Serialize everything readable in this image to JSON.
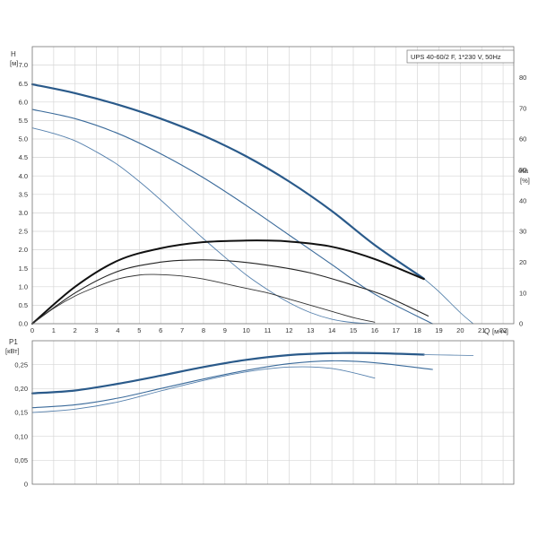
{
  "chart_data": [
    {
      "type": "line",
      "title": "UPS 40-60/2 F, 1*230 V, 50Hz",
      "ylabel": "H",
      "yunit": "[м]",
      "xlabel": "Q",
      "xunit": "[м³/ч]",
      "y2label": "eta",
      "y2unit": "[%]",
      "xlim": [
        0,
        22.5
      ],
      "ylim": [
        0,
        7.5
      ],
      "y2lim": [
        0,
        90
      ],
      "xticks": [
        "0",
        "1",
        "2",
        "3",
        "4",
        "5",
        "6",
        "7",
        "8",
        "9",
        "10",
        "11",
        "12",
        "13",
        "14",
        "15",
        "16",
        "17",
        "18",
        "19",
        "20",
        "21",
        "22"
      ],
      "yticks": [
        "0.0",
        "0.5",
        "1.0",
        "1.5",
        "2.0",
        "2.5",
        "3.0",
        "3.5",
        "4.0",
        "4.5",
        "5.0",
        "5.5",
        "6.0",
        "6.5",
        "7.0"
      ],
      "y2ticks": [
        "0",
        "10",
        "20",
        "30",
        "40",
        "50",
        "60",
        "70",
        "80"
      ],
      "grid": true,
      "series": [
        {
          "axis": "left",
          "color": "#2a5a8a",
          "width": 2.2,
          "x": [
            0,
            2,
            4,
            6,
            8,
            10,
            12,
            14,
            16,
            18.3
          ],
          "y": [
            6.48,
            6.24,
            5.93,
            5.55,
            5.09,
            4.53,
            3.85,
            3.05,
            2.13,
            1.22
          ]
        },
        {
          "axis": "left",
          "color": "#4a7aa6",
          "width": 0.8,
          "x": [
            18.3,
            19,
            20,
            20.6
          ],
          "y": [
            1.22,
            0.87,
            0.3,
            0
          ]
        },
        {
          "axis": "left",
          "color": "#3a6a9a",
          "width": 1.1,
          "x": [
            0,
            2,
            4,
            6,
            8,
            10,
            12,
            14,
            16,
            18.7
          ],
          "y": [
            5.8,
            5.55,
            5.15,
            4.6,
            3.95,
            3.2,
            2.4,
            1.6,
            0.8,
            0
          ]
        },
        {
          "axis": "left",
          "color": "#5580ad",
          "width": 0.9,
          "x": [
            0,
            1,
            2,
            3,
            4,
            5,
            6,
            7,
            8,
            9,
            10,
            11,
            12,
            13,
            14,
            15,
            16
          ],
          "y": [
            5.3,
            5.15,
            4.95,
            4.65,
            4.3,
            3.85,
            3.35,
            2.82,
            2.3,
            1.8,
            1.32,
            0.92,
            0.57,
            0.3,
            0.12,
            0.03,
            0
          ]
        },
        {
          "axis": "right",
          "color": "#111111",
          "width": 2,
          "x": [
            0,
            2,
            4,
            6,
            8,
            10,
            11,
            12,
            14,
            16,
            18.3
          ],
          "y": [
            0,
            12,
            20.5,
            24.5,
            26.5,
            27,
            27,
            26.7,
            25,
            21,
            14.5
          ]
        },
        {
          "axis": "right",
          "color": "#222222",
          "width": 1.1,
          "x": [
            0,
            2,
            4,
            6,
            7.5,
            9,
            11,
            13,
            15,
            16.5,
            18.5
          ],
          "y": [
            0,
            10,
            17,
            20,
            20.7,
            20.5,
            19,
            16.5,
            12.5,
            9,
            2.5
          ]
        },
        {
          "axis": "right",
          "color": "#333333",
          "width": 0.9,
          "x": [
            0,
            1,
            2,
            3,
            4,
            5,
            5.7,
            7,
            8,
            9,
            10,
            11,
            12,
            13,
            14,
            15,
            16
          ],
          "y": [
            0,
            5,
            9,
            12,
            14.5,
            15.8,
            16,
            15.5,
            14.5,
            13,
            11.5,
            10,
            8,
            6,
            4,
            2,
            0.5
          ]
        }
      ]
    },
    {
      "type": "line",
      "ylabel": "P1",
      "yunit": "[кВт]",
      "xlim": [
        0,
        22.5
      ],
      "ylim": [
        0,
        0.3
      ],
      "yticks": [
        "0",
        "0,05",
        "0,10",
        "0,15",
        "0,20",
        "0,25"
      ],
      "grid": true,
      "series": [
        {
          "color": "#2a5a8a",
          "width": 2.2,
          "x": [
            0,
            2,
            4,
            6,
            8,
            10,
            12,
            14,
            16,
            18.3
          ],
          "y": [
            0.19,
            0.196,
            0.21,
            0.227,
            0.245,
            0.26,
            0.27,
            0.274,
            0.274,
            0.271
          ]
        },
        {
          "color": "#6a8fb5",
          "width": 0.9,
          "x": [
            18.3,
            19.5,
            20.6
          ],
          "y": [
            0.271,
            0.27,
            0.269
          ]
        },
        {
          "color": "#3a6a9a",
          "width": 1.1,
          "x": [
            0,
            2,
            4,
            6,
            8,
            10,
            12,
            14,
            16,
            18.7
          ],
          "y": [
            0.16,
            0.166,
            0.18,
            0.2,
            0.22,
            0.238,
            0.252,
            0.258,
            0.254,
            0.24
          ]
        },
        {
          "color": "#5580ad",
          "width": 0.9,
          "x": [
            0,
            2,
            4,
            6,
            8,
            10,
            12,
            14,
            16
          ],
          "y": [
            0.15,
            0.157,
            0.172,
            0.195,
            0.217,
            0.235,
            0.245,
            0.242,
            0.222
          ]
        }
      ]
    }
  ]
}
